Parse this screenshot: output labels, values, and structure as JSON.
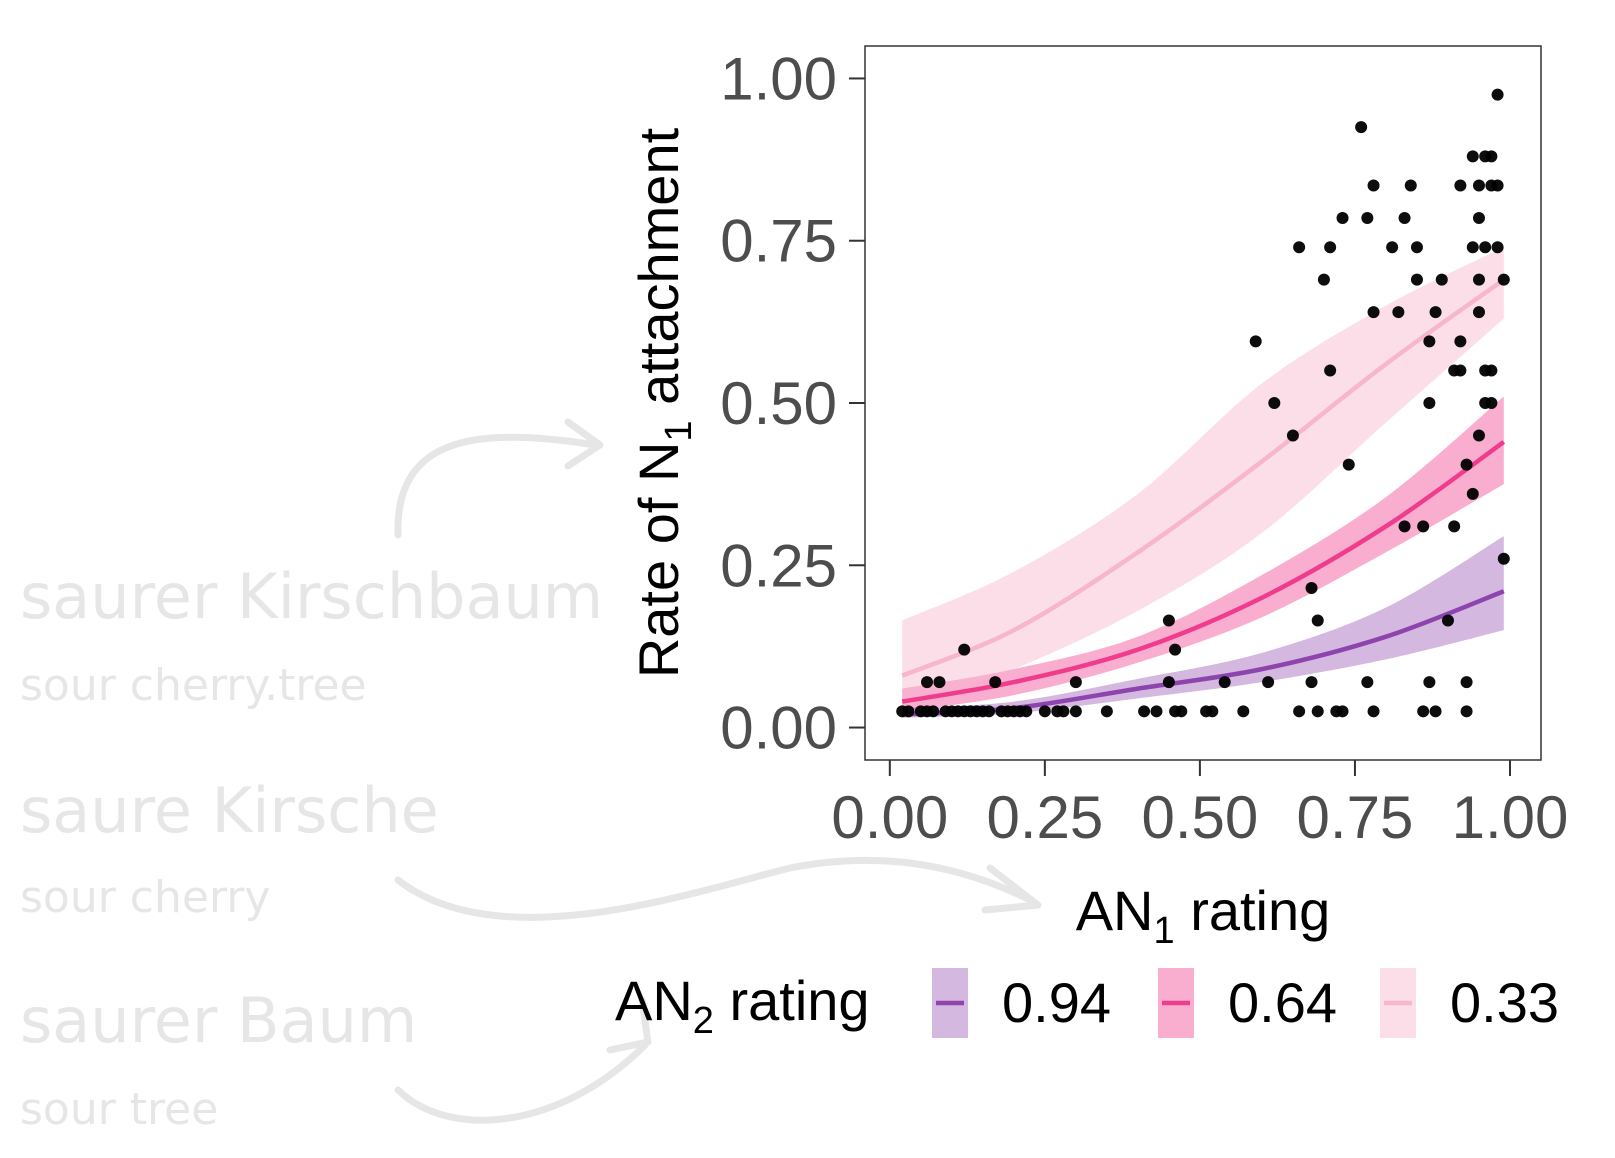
{
  "glosses": [
    {
      "german": "saurer Kirschbaum",
      "english": "sour cherry.tree"
    },
    {
      "german": "saure Kirsche",
      "english": "sour cherry"
    },
    {
      "german": "saurer Baum",
      "english": "sour tree"
    }
  ],
  "colors": {
    "series_094": "#8e44ad",
    "series_064": "#f03c8c",
    "series_033": "#f7b6cc",
    "points": "#000000",
    "annotation": "#e6e6e6",
    "tick_text": "#4d4d4d"
  },
  "chart_data": {
    "type": "scatter",
    "xlabel": {
      "main": "AN",
      "sub": "1",
      "rest": " rating"
    },
    "ylabel": {
      "main": "Rate of N",
      "sub": "1",
      "rest": " attachment"
    },
    "xlim": [
      -0.04,
      1.05
    ],
    "ylim": [
      -0.05,
      1.05
    ],
    "x_ticks": [
      "0.00",
      "0.25",
      "0.50",
      "0.75",
      "1.00"
    ],
    "y_ticks": [
      "0.00",
      "0.25",
      "0.50",
      "0.75",
      "1.00"
    ],
    "grid": false,
    "legend": {
      "title": {
        "main": "AN",
        "sub": "2",
        "rest": " rating"
      },
      "placement": "bottom",
      "entries": [
        "0.94",
        "0.64",
        "0.33"
      ]
    },
    "series": [
      {
        "name": "0.94",
        "x": [
          0.02,
          0.2,
          0.4,
          0.6,
          0.8,
          0.99
        ],
        "y": [
          0.02,
          0.03,
          0.06,
          0.09,
          0.14,
          0.21
        ],
        "lower": [
          0.015,
          0.022,
          0.045,
          0.07,
          0.105,
          0.15
        ],
        "upper": [
          0.03,
          0.04,
          0.075,
          0.115,
          0.185,
          0.295
        ]
      },
      {
        "name": "0.64",
        "x": [
          0.02,
          0.2,
          0.4,
          0.6,
          0.8,
          0.99
        ],
        "y": [
          0.04,
          0.07,
          0.12,
          0.2,
          0.31,
          0.44
        ],
        "lower": [
          0.025,
          0.05,
          0.1,
          0.17,
          0.27,
          0.375
        ],
        "upper": [
          0.06,
          0.09,
          0.14,
          0.235,
          0.355,
          0.51
        ]
      },
      {
        "name": "0.33",
        "x": [
          0.02,
          0.2,
          0.4,
          0.6,
          0.8,
          0.99
        ],
        "y": [
          0.08,
          0.15,
          0.27,
          0.41,
          0.56,
          0.69
        ],
        "lower": [
          0.03,
          0.09,
          0.18,
          0.3,
          0.47,
          0.63
        ],
        "upper": [
          0.165,
          0.24,
          0.36,
          0.53,
          0.65,
          0.74
        ]
      }
    ],
    "points": [
      [
        0.02,
        0.025
      ],
      [
        0.03,
        0.025
      ],
      [
        0.05,
        0.025
      ],
      [
        0.06,
        0.025
      ],
      [
        0.06,
        0.07
      ],
      [
        0.07,
        0.025
      ],
      [
        0.08,
        0.07
      ],
      [
        0.09,
        0.025
      ],
      [
        0.1,
        0.025
      ],
      [
        0.11,
        0.025
      ],
      [
        0.12,
        0.12
      ],
      [
        0.12,
        0.025
      ],
      [
        0.13,
        0.025
      ],
      [
        0.14,
        0.025
      ],
      [
        0.15,
        0.025
      ],
      [
        0.16,
        0.025
      ],
      [
        0.17,
        0.07
      ],
      [
        0.18,
        0.025
      ],
      [
        0.19,
        0.025
      ],
      [
        0.2,
        0.025
      ],
      [
        0.21,
        0.025
      ],
      [
        0.22,
        0.025
      ],
      [
        0.25,
        0.025
      ],
      [
        0.27,
        0.025
      ],
      [
        0.28,
        0.025
      ],
      [
        0.3,
        0.07
      ],
      [
        0.3,
        0.025
      ],
      [
        0.35,
        0.025
      ],
      [
        0.41,
        0.025
      ],
      [
        0.43,
        0.025
      ],
      [
        0.45,
        0.165
      ],
      [
        0.45,
        0.07
      ],
      [
        0.46,
        0.025
      ],
      [
        0.46,
        0.12
      ],
      [
        0.47,
        0.025
      ],
      [
        0.51,
        0.025
      ],
      [
        0.52,
        0.025
      ],
      [
        0.54,
        0.07
      ],
      [
        0.57,
        0.025
      ],
      [
        0.59,
        0.595
      ],
      [
        0.61,
        0.07
      ],
      [
        0.62,
        0.5
      ],
      [
        0.65,
        0.45
      ],
      [
        0.66,
        0.74
      ],
      [
        0.66,
        0.025
      ],
      [
        0.68,
        0.215
      ],
      [
        0.68,
        0.07
      ],
      [
        0.69,
        0.165
      ],
      [
        0.69,
        0.025
      ],
      [
        0.7,
        0.69
      ],
      [
        0.71,
        0.55
      ],
      [
        0.71,
        0.74
      ],
      [
        0.72,
        0.025
      ],
      [
        0.73,
        0.025
      ],
      [
        0.73,
        0.785
      ],
      [
        0.74,
        0.405
      ],
      [
        0.76,
        0.925
      ],
      [
        0.77,
        0.785
      ],
      [
        0.77,
        0.07
      ],
      [
        0.78,
        0.835
      ],
      [
        0.78,
        0.64
      ],
      [
        0.78,
        0.025
      ],
      [
        0.81,
        0.74
      ],
      [
        0.82,
        0.64
      ],
      [
        0.83,
        0.785
      ],
      [
        0.83,
        0.31
      ],
      [
        0.84,
        0.835
      ],
      [
        0.85,
        0.69
      ],
      [
        0.85,
        0.74
      ],
      [
        0.86,
        0.31
      ],
      [
        0.86,
        0.025
      ],
      [
        0.87,
        0.5
      ],
      [
        0.87,
        0.07
      ],
      [
        0.88,
        0.025
      ],
      [
        0.87,
        0.595
      ],
      [
        0.88,
        0.64
      ],
      [
        0.89,
        0.69
      ],
      [
        0.9,
        0.165
      ],
      [
        0.91,
        0.55
      ],
      [
        0.91,
        0.31
      ],
      [
        0.92,
        0.595
      ],
      [
        0.92,
        0.55
      ],
      [
        0.92,
        0.835
      ],
      [
        0.93,
        0.405
      ],
      [
        0.93,
        0.025
      ],
      [
        0.93,
        0.07
      ],
      [
        0.94,
        0.74
      ],
      [
        0.94,
        0.88
      ],
      [
        0.94,
        0.36
      ],
      [
        0.95,
        0.835
      ],
      [
        0.95,
        0.785
      ],
      [
        0.95,
        0.69
      ],
      [
        0.95,
        0.64
      ],
      [
        0.95,
        0.45
      ],
      [
        0.96,
        0.55
      ],
      [
        0.96,
        0.5
      ],
      [
        0.96,
        0.88
      ],
      [
        0.96,
        0.74
      ],
      [
        0.97,
        0.835
      ],
      [
        0.97,
        0.88
      ],
      [
        0.97,
        0.5
      ],
      [
        0.97,
        0.55
      ],
      [
        0.98,
        0.975
      ],
      [
        0.98,
        0.835
      ],
      [
        0.98,
        0.74
      ],
      [
        0.99,
        0.69
      ],
      [
        0.99,
        0.26
      ]
    ]
  }
}
